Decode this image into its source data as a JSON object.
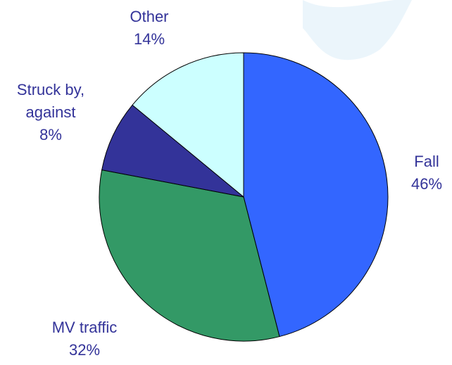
{
  "chart_data": {
    "type": "pie",
    "categories": [
      "Fall",
      "MV traffic",
      "Struck by, against",
      "Other"
    ],
    "values": [
      46,
      32,
      8,
      14
    ],
    "value_labels": [
      "46%",
      "32%",
      "8%",
      "14%"
    ],
    "colors": [
      "#3366ff",
      "#339966",
      "#333399",
      "#ccffff"
    ]
  }
}
